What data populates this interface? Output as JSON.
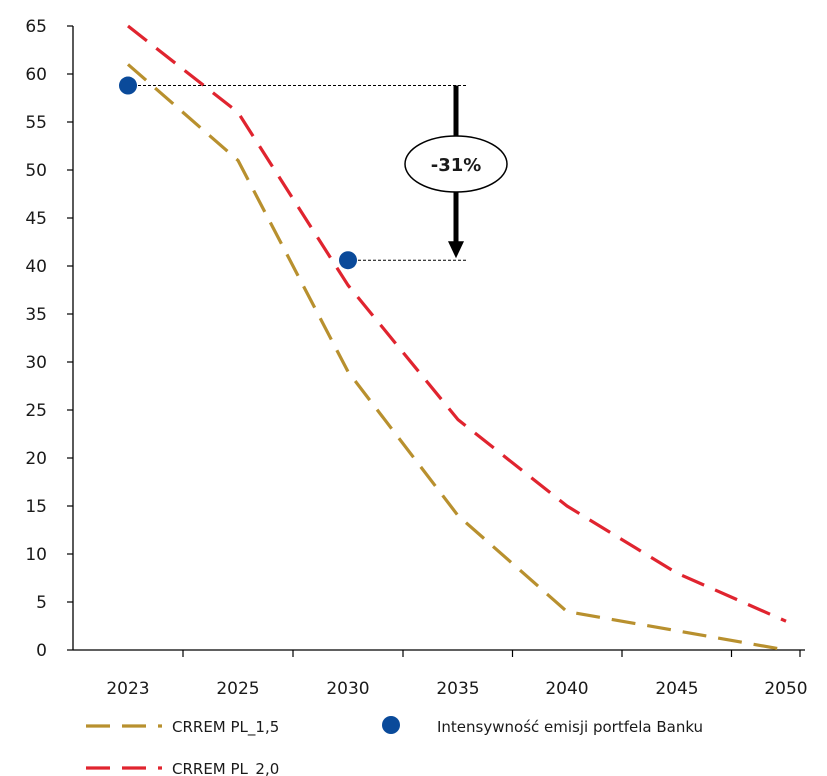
{
  "chart_data": {
    "type": "line",
    "categories": [
      "2023",
      "2025",
      "2030",
      "2035",
      "2040",
      "2045",
      "2050"
    ],
    "ylim": [
      0,
      65
    ],
    "yticks": [
      0,
      5,
      10,
      15,
      20,
      25,
      30,
      35,
      40,
      45,
      50,
      55,
      60,
      65
    ],
    "series": [
      {
        "name": "CRREM PL_1,5",
        "style": "dashed",
        "color": "#B8902E",
        "points": [
          [
            0,
            61
          ],
          [
            1,
            51
          ],
          [
            2,
            29
          ],
          [
            3,
            14
          ],
          [
            4,
            4
          ],
          [
            5,
            2
          ],
          [
            6,
            0
          ]
        ]
      },
      {
        "name": "CRREM PL_2,0",
        "style": "dashed",
        "color": "#E0242F",
        "points": [
          [
            0,
            65
          ],
          [
            1,
            56
          ],
          [
            2,
            38
          ],
          [
            3,
            24
          ],
          [
            4,
            15
          ],
          [
            5,
            8
          ],
          [
            6,
            3
          ]
        ]
      }
    ],
    "markers": {
      "name": "Intensywność emisji portfela Banku",
      "color": "#0A4A9A",
      "points": [
        [
          0,
          58.8
        ],
        [
          2,
          40.6
        ]
      ]
    },
    "annotation": {
      "text": "-31%"
    },
    "legend_position": "bottom"
  }
}
